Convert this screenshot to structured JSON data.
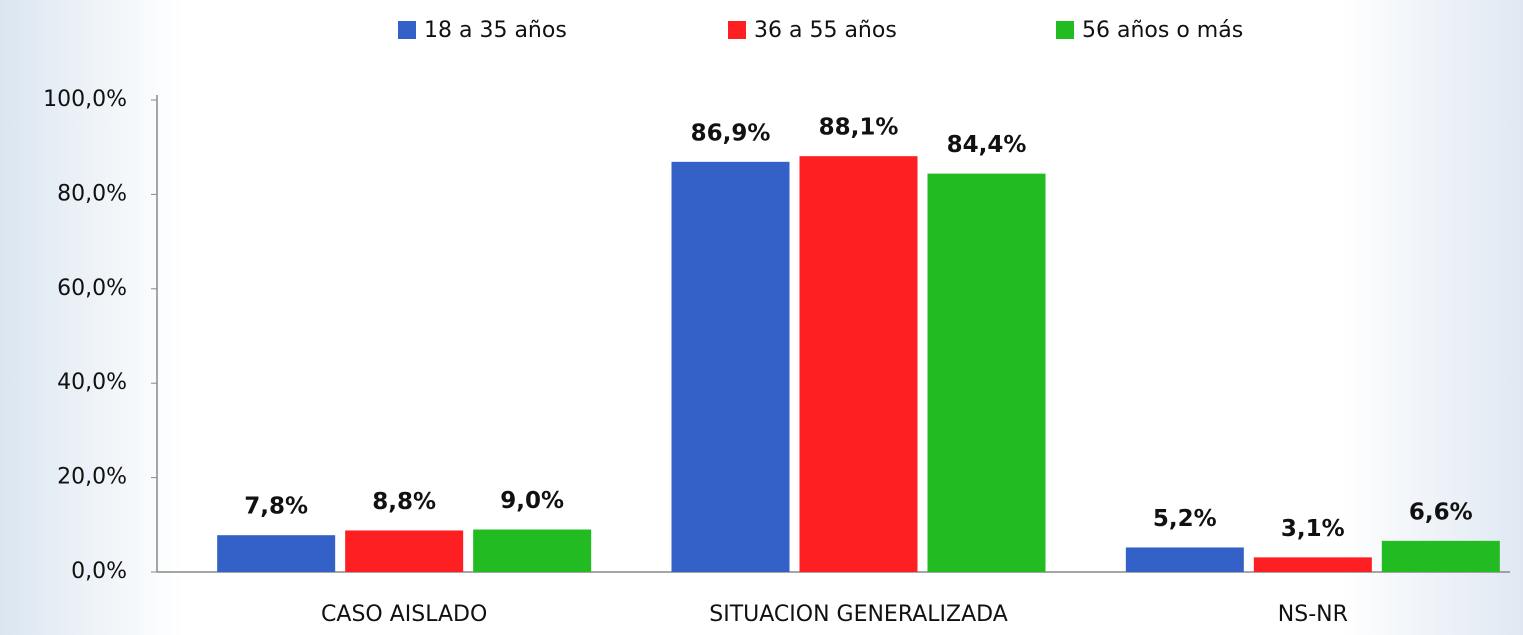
{
  "chart_data": {
    "type": "bar",
    "categories": [
      "CASO AISLADO",
      "SITUACION GENERALIZADA",
      "NS-NR"
    ],
    "series": [
      {
        "name": "18 a 35 años",
        "color": "#3461c8",
        "values": [
          7.8,
          86.9,
          5.2
        ],
        "value_labels": [
          "7,8%",
          "86,9%",
          "5,2%"
        ]
      },
      {
        "name": "36 a 55 años",
        "color": "#fe1f22",
        "values": [
          8.8,
          88.1,
          3.1
        ],
        "value_labels": [
          "8,8%",
          "88,1%",
          "3,1%"
        ]
      },
      {
        "name": "56 años o más",
        "color": "#22bb22",
        "values": [
          9.0,
          84.4,
          6.6
        ],
        "value_labels": [
          "9,0%",
          "84,4%",
          "6,6%"
        ]
      }
    ],
    "ylim": [
      0,
      100
    ],
    "yticks": [
      {
        "value": 0,
        "label": "0,0%"
      },
      {
        "value": 20,
        "label": "20,0%"
      },
      {
        "value": 40,
        "label": "40,0%"
      },
      {
        "value": 60,
        "label": "60,0%"
      },
      {
        "value": 80,
        "label": "80,0%"
      },
      {
        "value": 100,
        "label": "100,0%"
      }
    ],
    "grid": false,
    "legend": "top"
  }
}
